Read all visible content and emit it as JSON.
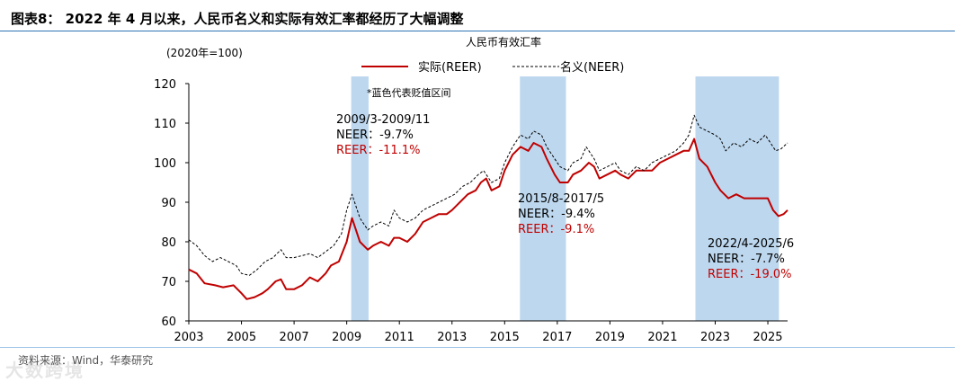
{
  "figure": {
    "title": "图表8：  2022 年 4 月以来，人民币名义和实际有效汇率都经历了大幅调整",
    "source": "资料来源：Wind，华泰研究",
    "watermark": "大数跨境"
  },
  "chart_data": {
    "type": "line",
    "title": "人民币有效汇率",
    "unit_label": "(2020年=100)",
    "note": "*蓝色代表贬值区间",
    "ylim": [
      60,
      120
    ],
    "yticks": [
      "60",
      "70",
      "80",
      "90",
      "100",
      "110",
      "120"
    ],
    "xlim": [
      2003.0,
      2025.75
    ],
    "xticks": [
      "2003",
      "2005",
      "2007",
      "2009",
      "2011",
      "2013",
      "2015",
      "2017",
      "2019",
      "2021",
      "2023",
      "2025"
    ],
    "legend_position": "top-center",
    "colors": {
      "reer": "#c00000",
      "neer": "#000000",
      "shade": "#bdd7ee",
      "axis": "#000000",
      "annotation_red": "#c00000"
    },
    "shaded_periods": [
      {
        "start": 2009.17,
        "end": 2009.83,
        "label": "2009/3-2009/11",
        "neer": "NEER：-9.7%",
        "reer": "REER：-11.1%"
      },
      {
        "start": 2015.58,
        "end": 2017.33,
        "label": "2015/8-2017/5",
        "neer": "NEER：-9.4%",
        "reer": "REER：-9.1%"
      },
      {
        "start": 2022.25,
        "end": 2025.42,
        "label": "2022/4-2025/6",
        "neer": "NEER：-7.7%",
        "reer": "REER：-19.0%"
      }
    ],
    "series": [
      {
        "name": "实际(REER)",
        "style": "solid",
        "points": [
          [
            2003.0,
            73
          ],
          [
            2003.3,
            72
          ],
          [
            2003.6,
            69.5
          ],
          [
            2004.0,
            69
          ],
          [
            2004.3,
            68.5
          ],
          [
            2004.7,
            69
          ],
          [
            2005.0,
            67
          ],
          [
            2005.2,
            65.5
          ],
          [
            2005.5,
            66
          ],
          [
            2005.8,
            67
          ],
          [
            2006.0,
            68
          ],
          [
            2006.3,
            70
          ],
          [
            2006.5,
            70.5
          ],
          [
            2006.7,
            68
          ],
          [
            2007.0,
            68
          ],
          [
            2007.3,
            69
          ],
          [
            2007.6,
            71
          ],
          [
            2007.9,
            70
          ],
          [
            2008.2,
            72
          ],
          [
            2008.4,
            74
          ],
          [
            2008.7,
            75
          ],
          [
            2009.0,
            80
          ],
          [
            2009.2,
            86
          ],
          [
            2009.5,
            80
          ],
          [
            2009.8,
            78
          ],
          [
            2010.0,
            79
          ],
          [
            2010.3,
            80
          ],
          [
            2010.6,
            79
          ],
          [
            2010.8,
            81
          ],
          [
            2011.0,
            81
          ],
          [
            2011.3,
            80
          ],
          [
            2011.6,
            82
          ],
          [
            2011.9,
            85
          ],
          [
            2012.2,
            86
          ],
          [
            2012.5,
            87
          ],
          [
            2012.8,
            87
          ],
          [
            2013.0,
            88
          ],
          [
            2013.3,
            90
          ],
          [
            2013.6,
            92
          ],
          [
            2013.9,
            93
          ],
          [
            2014.1,
            95
          ],
          [
            2014.3,
            96
          ],
          [
            2014.5,
            93
          ],
          [
            2014.8,
            94
          ],
          [
            2015.0,
            98
          ],
          [
            2015.3,
            102
          ],
          [
            2015.6,
            104
          ],
          [
            2015.9,
            103
          ],
          [
            2016.1,
            105
          ],
          [
            2016.4,
            104
          ],
          [
            2016.6,
            101
          ],
          [
            2016.9,
            97
          ],
          [
            2017.1,
            95
          ],
          [
            2017.4,
            95
          ],
          [
            2017.6,
            97
          ],
          [
            2017.9,
            98
          ],
          [
            2018.2,
            100
          ],
          [
            2018.4,
            99
          ],
          [
            2018.6,
            96
          ],
          [
            2018.9,
            97
          ],
          [
            2019.2,
            98
          ],
          [
            2019.4,
            97
          ],
          [
            2019.7,
            96
          ],
          [
            2020.0,
            98
          ],
          [
            2020.3,
            98
          ],
          [
            2020.6,
            98
          ],
          [
            2020.9,
            100
          ],
          [
            2021.2,
            101
          ],
          [
            2021.5,
            102
          ],
          [
            2021.8,
            103
          ],
          [
            2022.0,
            103
          ],
          [
            2022.2,
            106
          ],
          [
            2022.4,
            101
          ],
          [
            2022.7,
            99
          ],
          [
            2023.0,
            95
          ],
          [
            2023.2,
            93
          ],
          [
            2023.5,
            91
          ],
          [
            2023.8,
            92
          ],
          [
            2024.1,
            91
          ],
          [
            2024.4,
            91
          ],
          [
            2024.7,
            91
          ],
          [
            2025.0,
            91
          ],
          [
            2025.2,
            88
          ],
          [
            2025.4,
            86.5
          ],
          [
            2025.6,
            87
          ],
          [
            2025.75,
            88
          ]
        ]
      },
      {
        "name": "名义(NEER)",
        "style": "dashed",
        "points": [
          [
            2003.0,
            80.5
          ],
          [
            2003.3,
            79
          ],
          [
            2003.6,
            76.5
          ],
          [
            2003.9,
            75
          ],
          [
            2004.2,
            76
          ],
          [
            2004.5,
            75
          ],
          [
            2004.8,
            74
          ],
          [
            2005.0,
            72
          ],
          [
            2005.3,
            71.5
          ],
          [
            2005.6,
            73
          ],
          [
            2005.9,
            75
          ],
          [
            2006.2,
            76
          ],
          [
            2006.5,
            78
          ],
          [
            2006.7,
            76
          ],
          [
            2007.0,
            76
          ],
          [
            2007.3,
            76.5
          ],
          [
            2007.6,
            77
          ],
          [
            2007.9,
            76
          ],
          [
            2008.2,
            77.5
          ],
          [
            2008.5,
            79
          ],
          [
            2008.8,
            82
          ],
          [
            2009.0,
            88
          ],
          [
            2009.2,
            92
          ],
          [
            2009.5,
            86
          ],
          [
            2009.8,
            83
          ],
          [
            2010.0,
            84
          ],
          [
            2010.3,
            85
          ],
          [
            2010.6,
            84
          ],
          [
            2010.8,
            88
          ],
          [
            2011.0,
            86
          ],
          [
            2011.3,
            85
          ],
          [
            2011.6,
            86
          ],
          [
            2011.9,
            88
          ],
          [
            2012.2,
            89
          ],
          [
            2012.5,
            90
          ],
          [
            2012.8,
            91
          ],
          [
            2013.1,
            92
          ],
          [
            2013.4,
            94
          ],
          [
            2013.7,
            95
          ],
          [
            2014.0,
            97
          ],
          [
            2014.2,
            98
          ],
          [
            2014.5,
            95
          ],
          [
            2014.8,
            96
          ],
          [
            2015.0,
            100
          ],
          [
            2015.3,
            104
          ],
          [
            2015.6,
            107
          ],
          [
            2015.9,
            106
          ],
          [
            2016.1,
            108
          ],
          [
            2016.4,
            107
          ],
          [
            2016.6,
            104
          ],
          [
            2016.9,
            101
          ],
          [
            2017.1,
            99
          ],
          [
            2017.4,
            98
          ],
          [
            2017.6,
            100
          ],
          [
            2017.9,
            101
          ],
          [
            2018.1,
            104
          ],
          [
            2018.4,
            101
          ],
          [
            2018.6,
            98
          ],
          [
            2018.9,
            99
          ],
          [
            2019.2,
            100
          ],
          [
            2019.4,
            98
          ],
          [
            2019.7,
            97
          ],
          [
            2020.0,
            99
          ],
          [
            2020.3,
            98
          ],
          [
            2020.6,
            100
          ],
          [
            2020.9,
            101
          ],
          [
            2021.2,
            102
          ],
          [
            2021.5,
            103
          ],
          [
            2021.8,
            105
          ],
          [
            2022.0,
            107
          ],
          [
            2022.2,
            112
          ],
          [
            2022.4,
            109
          ],
          [
            2022.7,
            108
          ],
          [
            2023.0,
            107
          ],
          [
            2023.2,
            106
          ],
          [
            2023.4,
            103
          ],
          [
            2023.7,
            105
          ],
          [
            2024.0,
            104
          ],
          [
            2024.3,
            106
          ],
          [
            2024.6,
            105
          ],
          [
            2024.9,
            107
          ],
          [
            2025.1,
            105
          ],
          [
            2025.3,
            103
          ],
          [
            2025.5,
            103.5
          ],
          [
            2025.75,
            105
          ]
        ]
      }
    ]
  }
}
